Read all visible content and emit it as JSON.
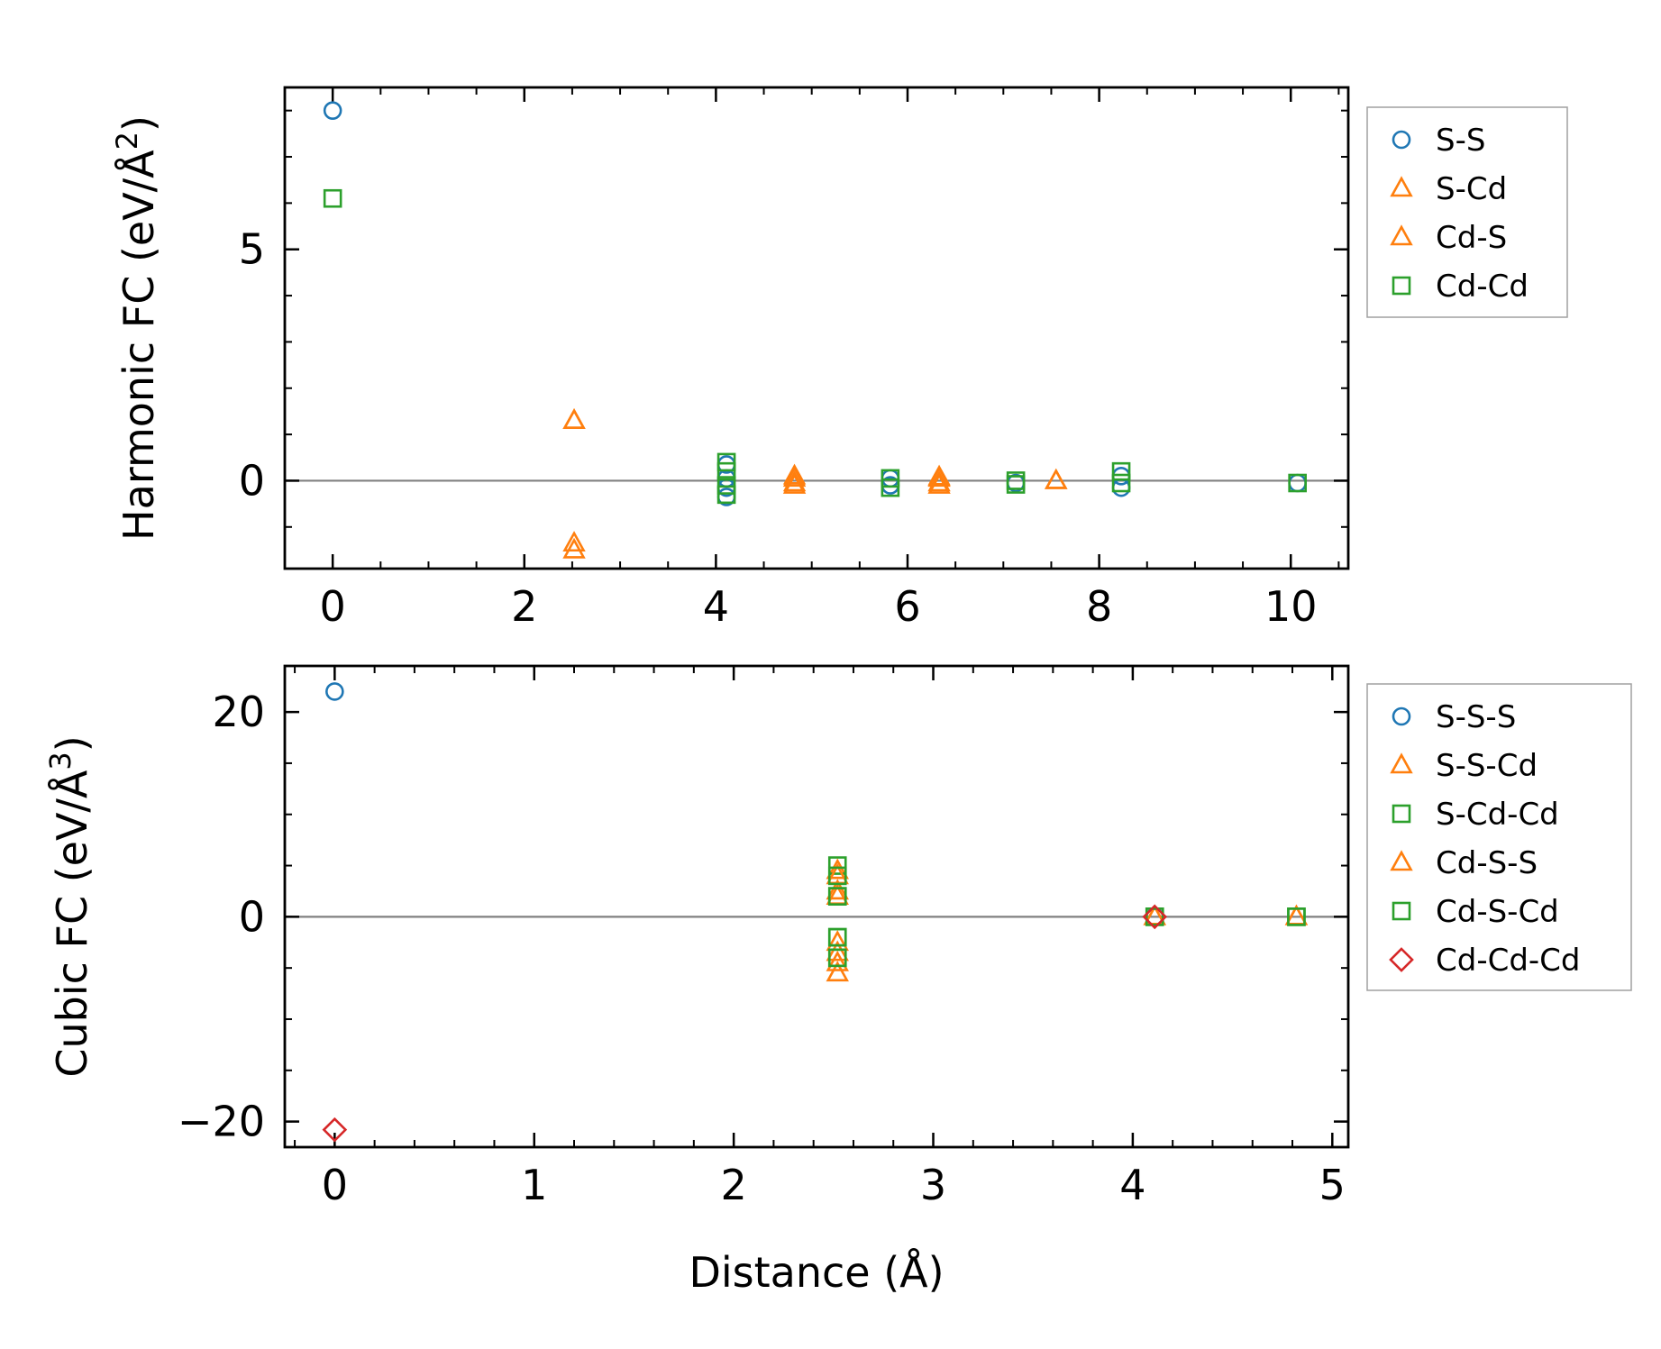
{
  "chart_data": [
    {
      "type": "scatter",
      "title": "",
      "xlabel": "",
      "ylabel": "Harmonic FC (eV/Å",
      "ylabel_sup": "2",
      "ylabel_end": ")",
      "xlim": [
        -0.5,
        10.6
      ],
      "ylim": [
        -1.9,
        8.5
      ],
      "xticks": [
        0,
        2,
        4,
        6,
        8,
        10
      ],
      "xtick_labels": [
        "0",
        "2",
        "4",
        "6",
        "8",
        "10"
      ],
      "yticks": [
        0,
        5
      ],
      "ytick_labels": [
        "0",
        "5"
      ],
      "legend_position": "outside-right",
      "series": [
        {
          "name": "S-S",
          "marker": "circle",
          "color": "#1f77b4",
          "x": [
            0,
            4.11,
            4.11,
            4.11,
            4.11,
            5.82,
            5.82,
            7.13,
            8.23,
            8.23,
            10.07
          ],
          "y": [
            8.0,
            0.35,
            0.05,
            -0.15,
            -0.35,
            0.05,
            -0.1,
            -0.05,
            0.1,
            -0.15,
            -0.05
          ]
        },
        {
          "name": "S-Cd",
          "marker": "triangle",
          "color": "#ff7f0e",
          "x": [
            2.52,
            2.52,
            4.82,
            4.82,
            6.33,
            6.33,
            7.55
          ],
          "y": [
            1.3,
            -1.35,
            0.1,
            -0.1,
            0.08,
            -0.1,
            0.0
          ]
        },
        {
          "name": "Cd-S",
          "marker": "triangle",
          "color": "#ff7f0e",
          "x": [
            2.52,
            2.52,
            4.82,
            4.82,
            6.33,
            6.33,
            7.55
          ],
          "y": [
            1.3,
            -1.5,
            0.05,
            -0.05,
            0.05,
            -0.05,
            0.0
          ]
        },
        {
          "name": "Cd-Cd",
          "marker": "square",
          "color": "#2ca02c",
          "x": [
            0,
            4.11,
            4.11,
            4.11,
            4.11,
            5.82,
            5.82,
            7.13,
            7.13,
            8.23,
            8.23,
            10.07
          ],
          "y": [
            6.1,
            0.4,
            0.2,
            -0.1,
            -0.3,
            0.05,
            -0.15,
            0.0,
            -0.08,
            0.2,
            -0.05,
            -0.05
          ]
        }
      ]
    },
    {
      "type": "scatter",
      "title": "",
      "xlabel": "Distance (Å)",
      "ylabel": "Cubic FC (eV/Å",
      "ylabel_sup": "3",
      "ylabel_end": ")",
      "xlim": [
        -0.25,
        5.08
      ],
      "ylim": [
        -22.5,
        24.5
      ],
      "xticks": [
        0,
        1,
        2,
        3,
        4,
        5
      ],
      "xtick_labels": [
        "0",
        "1",
        "2",
        "3",
        "4",
        "5"
      ],
      "yticks": [
        -20,
        0,
        20
      ],
      "ytick_labels": [
        "−20",
        "0",
        "20"
      ],
      "legend_position": "outside-right",
      "series": [
        {
          "name": "S-S-S",
          "marker": "circle",
          "color": "#1f77b4",
          "x": [
            0,
            4.11
          ],
          "y": [
            22,
            0
          ]
        },
        {
          "name": "S-S-Cd",
          "marker": "triangle",
          "color": "#ff7f0e",
          "x": [
            2.52,
            2.52,
            2.52,
            2.52,
            4.11,
            4.82
          ],
          "y": [
            4.5,
            2.5,
            -2.5,
            -4.5,
            0,
            0
          ]
        },
        {
          "name": "S-Cd-Cd",
          "marker": "square",
          "color": "#2ca02c",
          "x": [
            2.52,
            2.52,
            2.52,
            2.52,
            4.11,
            4.82
          ],
          "y": [
            5,
            2,
            -2,
            -4,
            0,
            0
          ]
        },
        {
          "name": "Cd-S-S",
          "marker": "triangle",
          "color": "#ff7f0e",
          "x": [
            2.52,
            2.52,
            2.52,
            2.52,
            4.11,
            4.82
          ],
          "y": [
            4,
            2,
            -3.5,
            -5.5,
            0,
            0
          ]
        },
        {
          "name": "Cd-S-Cd",
          "marker": "square",
          "color": "#2ca02c",
          "x": [
            2.52,
            2.52,
            2.52,
            2.52,
            4.11,
            4.82
          ],
          "y": [
            4,
            2,
            -2,
            -4,
            0,
            0
          ]
        },
        {
          "name": "Cd-Cd-Cd",
          "marker": "diamond",
          "color": "#d62728",
          "x": [
            0,
            4.11
          ],
          "y": [
            -20.8,
            0
          ]
        }
      ]
    }
  ]
}
